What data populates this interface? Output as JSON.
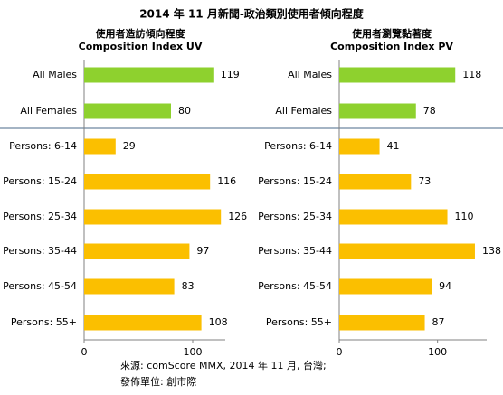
{
  "title": "2014 年 11 月新聞-政治類別使用者傾向程度",
  "source": [
    "來源: comScore MMX, 2014 年 11 月, 台灣;",
    "發佈單位: 創市際"
  ],
  "chart_data": [
    {
      "type": "bar",
      "subtitle": [
        "使用者造訪傾向程度",
        "Composition Index UV"
      ],
      "categories": [
        "All Males",
        "All Females",
        "Persons: 6-14",
        "Persons: 15-24",
        "Persons: 25-34",
        "Persons: 35-44",
        "Persons: 45-54",
        "Persons: 55+"
      ],
      "values": [
        119,
        80,
        29,
        116,
        126,
        97,
        83,
        108
      ],
      "colors": [
        "#8ed12e",
        "#8ed12e",
        "#fbbf00",
        "#fbbf00",
        "#fbbf00",
        "#fbbf00",
        "#fbbf00",
        "#fbbf00"
      ],
      "xlim": [
        0,
        130
      ],
      "xticks": [
        0,
        100
      ]
    },
    {
      "type": "bar",
      "subtitle": [
        "使用者瀏覽黏著度",
        "Composition Index PV"
      ],
      "categories": [
        "All Males",
        "All Females",
        "Persons: 6-14",
        "Persons: 15-24",
        "Persons: 25-34",
        "Persons: 35-44",
        "Persons: 45-54",
        "Persons: 55+"
      ],
      "values": [
        118,
        78,
        41,
        73,
        110,
        138,
        94,
        87
      ],
      "colors": [
        "#8ed12e",
        "#8ed12e",
        "#fbbf00",
        "#fbbf00",
        "#fbbf00",
        "#fbbf00",
        "#fbbf00",
        "#fbbf00"
      ],
      "xlim": [
        0,
        150
      ],
      "xticks": [
        0,
        100
      ]
    }
  ]
}
